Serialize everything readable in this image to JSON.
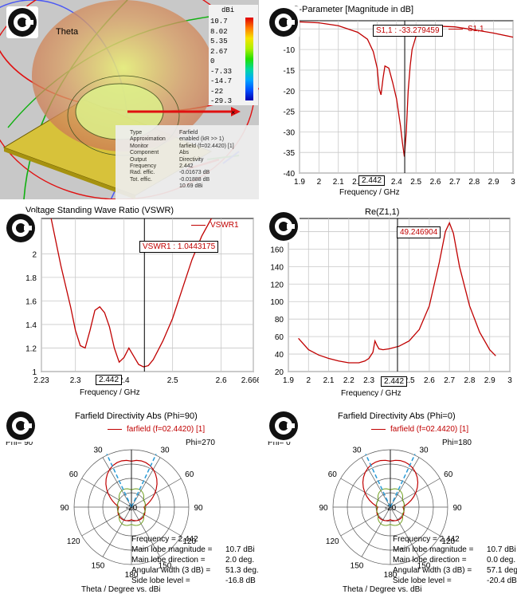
{
  "panels": {
    "farfield3d": {
      "theta_label": "Theta",
      "colorbar": {
        "unit": "dBi",
        "labels": [
          "10.7",
          "8.02",
          "5.35",
          "2.67",
          "0",
          "-7.33",
          "-14.7",
          "-22",
          "-29.3"
        ],
        "colors": [
          "#e00000",
          "#ff7a00",
          "#f7e400",
          "#aef000",
          "#22e000",
          "#00d8a0",
          "#00a8ff",
          "#0050ff",
          "#0000b0"
        ]
      },
      "info": [
        [
          "Type",
          "Farfield"
        ],
        [
          "Approximation",
          "enabled (kR >> 1)"
        ],
        [
          "Monitor",
          "farfield (f=02.4420) [1]"
        ],
        [
          "Component",
          "Abs"
        ],
        [
          "Output",
          "Directivity"
        ],
        [
          "Frequency",
          "2.442"
        ],
        [
          "Rad. effic.",
          "-0.01673 dB"
        ],
        [
          "Tot. effic.",
          "-0.01888 dB"
        ],
        [
          "",
          "10.69 dBi"
        ]
      ]
    },
    "s11": {
      "title": "S-Parameter [Magnitude in dB]",
      "legend": "S1,1",
      "marker": "S1,1 : -33.279459",
      "xmarker": "2.442",
      "xlabel": "Frequency / GHz",
      "xticks": [
        "1.9",
        "2",
        "2.1",
        "2.2",
        "2.3",
        "2.4",
        "2.5",
        "2.6",
        "2.7",
        "2.8",
        "2.9",
        "3"
      ],
      "yticks": [
        "-5",
        "-10",
        "-15",
        "-20",
        "-25",
        "-30",
        "-35",
        "-40"
      ]
    },
    "vswr": {
      "title": "Voltage Standing Wave Ratio (VSWR)",
      "legend": "VSWR1",
      "marker": "VSWR1 : 1.0443175",
      "xmarker": "2.442",
      "xlabel": "Frequency / GHz",
      "xticks": [
        "2.23",
        "2.3",
        "2.4",
        "2.5",
        "2.6",
        "2.6662"
      ],
      "yticks": [
        "1",
        "1.2",
        "1.4",
        "1.6",
        "1.8",
        "2"
      ]
    },
    "rez": {
      "title": "Re(Z1,1)",
      "marker": "49.246904",
      "xmarker": "2.442",
      "xlabel": "Frequency / GHz",
      "xticks": [
        "1.9",
        "2",
        "2.1",
        "2.2",
        "2.3",
        "2.4",
        "2.5",
        "2.6",
        "2.7",
        "2.8",
        "2.9",
        "3"
      ],
      "yticks": [
        "20",
        "40",
        "60",
        "80",
        "100",
        "120",
        "140",
        "160",
        "180"
      ]
    },
    "polar90": {
      "title": "Farfield Directivity Abs (Phi=90)",
      "legend": "farfield (f=02.4420) [1]",
      "phi_left": "Phi= 90",
      "phi_right": "Phi=270",
      "angle_labels": [
        "30",
        "60",
        "90",
        "120",
        "150",
        "180",
        "30",
        "60",
        "90",
        "120",
        "150"
      ],
      "center_label": "-20",
      "stats": [
        [
          "Frequency = 2.442",
          ""
        ],
        [
          "Main lobe magnitude =",
          "10.7 dBi"
        ],
        [
          "Main lobe direction =",
          "2.0 deg."
        ],
        [
          "Angular width (3 dB) =",
          "51.3 deg."
        ],
        [
          "Side lobe level =",
          "-16.8 dB"
        ]
      ],
      "axis_label": "Theta / Degree vs. dBi"
    },
    "polar0": {
      "title": "Farfield Directivity Abs (Phi=0)",
      "legend": "farfield (f=02.4420) [1]",
      "phi_left": "Phi=  0",
      "phi_right": "Phi=180",
      "angle_labels": [
        "30",
        "60",
        "90",
        "120",
        "150",
        "180",
        "30",
        "60",
        "90",
        "120",
        "150"
      ],
      "center_label": "-20",
      "stats": [
        [
          "Frequency = 2.442",
          ""
        ],
        [
          "Main lobe magnitude =",
          "10.7 dBi"
        ],
        [
          "Main lobe direction =",
          "0.0 deg."
        ],
        [
          "Angular width (3 dB) =",
          "57.1 deg."
        ],
        [
          "Side lobe level =",
          "-20.4 dB"
        ]
      ],
      "axis_label": "Theta / Degree vs. dBi"
    }
  },
  "chart_data": [
    {
      "type": "line",
      "title": "S-Parameter [Magnitude in dB]",
      "xlabel": "Frequency / GHz",
      "ylabel": "",
      "xlim": [
        1.9,
        3.0
      ],
      "ylim": [
        -40,
        -3
      ],
      "series": [
        {
          "name": "S1,1",
          "x": [
            1.9,
            2.0,
            2.1,
            2.2,
            2.25,
            2.28,
            2.3,
            2.31,
            2.32,
            2.33,
            2.34,
            2.36,
            2.38,
            2.4,
            2.42,
            2.43,
            2.44,
            2.45,
            2.46,
            2.47,
            2.48,
            2.5,
            2.52,
            2.55,
            2.6,
            2.7,
            2.8,
            2.9,
            3.0
          ],
          "y": [
            -3.3,
            -3.5,
            -4.2,
            -5.8,
            -7.5,
            -10.5,
            -14.5,
            -19.5,
            -21.0,
            -17.0,
            -14.0,
            -14.5,
            -18.0,
            -22.0,
            -28.5,
            -32.5,
            -36.0,
            -30.0,
            -20.0,
            -14.0,
            -10.0,
            -6.8,
            -5.3,
            -4.5,
            -4.3,
            -4.5,
            -5.2,
            -6.0,
            -7.0
          ]
        }
      ],
      "markers": [
        {
          "x": 2.442,
          "y": -33.279459,
          "label": "S1,1 : -33.279459"
        }
      ]
    },
    {
      "type": "line",
      "title": "Voltage Standing Wave Ratio (VSWR)",
      "xlabel": "Frequency / GHz",
      "ylabel": "",
      "xlim": [
        2.23,
        2.6662
      ],
      "ylim": [
        1.0,
        2.3
      ],
      "series": [
        {
          "name": "VSWR1",
          "x": [
            2.25,
            2.27,
            2.29,
            2.3,
            2.31,
            2.32,
            2.33,
            2.34,
            2.35,
            2.36,
            2.37,
            2.38,
            2.39,
            2.4,
            2.41,
            2.42,
            2.43,
            2.44,
            2.45,
            2.46,
            2.47,
            2.48,
            2.5,
            2.52,
            2.54,
            2.56,
            2.58
          ],
          "y": [
            2.3,
            1.9,
            1.55,
            1.35,
            1.22,
            1.2,
            1.35,
            1.52,
            1.55,
            1.5,
            1.38,
            1.2,
            1.08,
            1.12,
            1.2,
            1.13,
            1.06,
            1.04,
            1.05,
            1.1,
            1.18,
            1.26,
            1.45,
            1.7,
            1.95,
            2.15,
            2.3
          ]
        }
      ],
      "markers": [
        {
          "x": 2.442,
          "y": 1.0443175,
          "label": "VSWR1 : 1.0443175"
        }
      ]
    },
    {
      "type": "line",
      "title": "Re(Z1,1)",
      "xlabel": "Frequency / GHz",
      "ylabel": "",
      "xlim": [
        1.9,
        3.0
      ],
      "ylim": [
        20,
        195
      ],
      "series": [
        {
          "name": "Re(Z1,1)",
          "x": [
            1.95,
            2.0,
            2.05,
            2.1,
            2.15,
            2.2,
            2.25,
            2.28,
            2.3,
            2.32,
            2.33,
            2.34,
            2.35,
            2.37,
            2.4,
            2.45,
            2.5,
            2.55,
            2.6,
            2.65,
            2.68,
            2.7,
            2.72,
            2.75,
            2.8,
            2.85,
            2.9,
            2.93
          ],
          "y": [
            58,
            45,
            39,
            35,
            32,
            30,
            30,
            32,
            35,
            42,
            55,
            50,
            46,
            45,
            46,
            49,
            55,
            68,
            95,
            145,
            180,
            190,
            178,
            140,
            95,
            65,
            45,
            38
          ]
        }
      ],
      "markers": [
        {
          "x": 2.442,
          "y": 49.246904,
          "label": "49.246904"
        }
      ]
    },
    {
      "type": "polar",
      "title": "Farfield Directivity Abs (Phi=90)",
      "series": [
        {
          "name": "farfield (f=02.4420) [1]"
        }
      ],
      "stats": {
        "frequency": 2.442,
        "main_lobe_magnitude_dBi": 10.7,
        "main_lobe_direction_deg": 2.0,
        "angular_width_3dB_deg": 51.3,
        "side_lobe_level_dB": -16.8
      }
    },
    {
      "type": "polar",
      "title": "Farfield Directivity Abs (Phi=0)",
      "series": [
        {
          "name": "farfield (f=02.4420) [1]"
        }
      ],
      "stats": {
        "frequency": 2.442,
        "main_lobe_magnitude_dBi": 10.7,
        "main_lobe_direction_deg": 0.0,
        "angular_width_3dB_deg": 57.1,
        "side_lobe_level_dB": -20.4
      }
    }
  ]
}
